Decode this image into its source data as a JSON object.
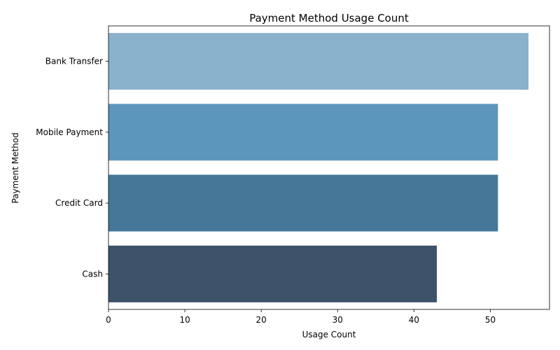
{
  "chart_data": {
    "type": "bar",
    "orientation": "horizontal",
    "title": "Payment Method Usage Count",
    "xlabel": "Usage Count",
    "ylabel": "Payment Method",
    "categories": [
      "Bank Transfer",
      "Mobile Payment",
      "Credit Card",
      "Cash"
    ],
    "values": [
      55,
      51,
      51,
      43
    ],
    "colors": [
      "#8ab1cc",
      "#5d96bc",
      "#447798",
      "#3c5269"
    ],
    "xlim": [
      0,
      57.75
    ],
    "xticks": [
      0,
      10,
      20,
      30,
      40,
      50
    ],
    "grid": false,
    "legend": "none"
  }
}
